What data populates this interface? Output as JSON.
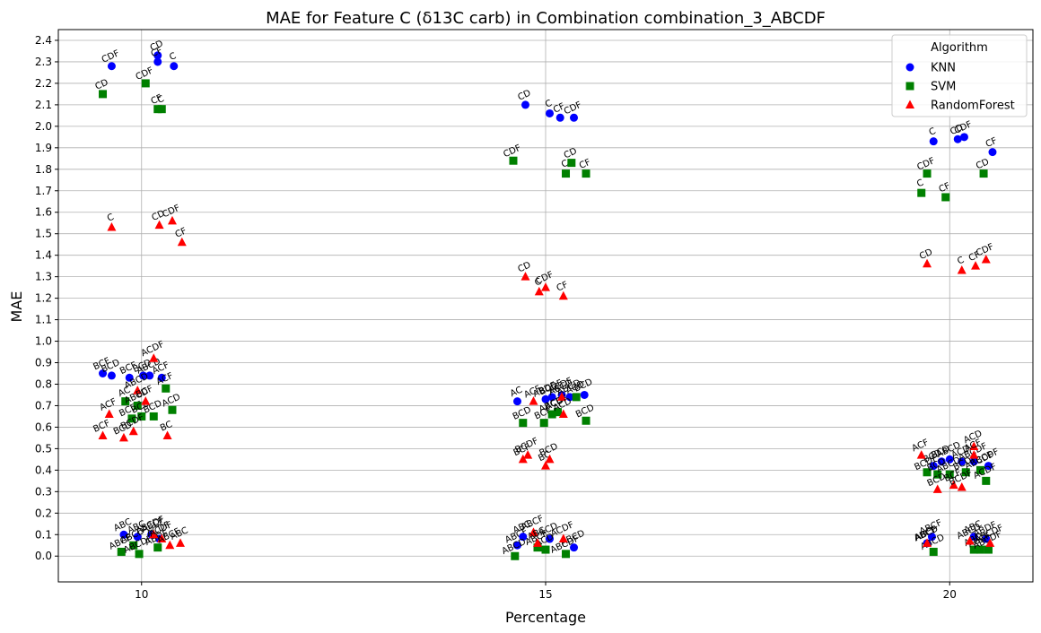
{
  "chart_data": {
    "type": "scatter",
    "title": "MAE for Feature C (δ13C carb) in Combination combination_3_ABCDF",
    "xlabel": "Percentage",
    "ylabel": "MAE",
    "x_ticks": [
      10,
      15,
      20
    ],
    "x_tick_labels": [
      "10",
      "15",
      "20"
    ],
    "xlim": [
      8.97,
      21.03
    ],
    "y_ticks": [
      0.0,
      0.1,
      0.2,
      0.3,
      0.4,
      0.5,
      0.6,
      0.7,
      0.8,
      0.9,
      1.0,
      1.1,
      1.2,
      1.3,
      1.4,
      1.5,
      1.6,
      1.7,
      1.8,
      1.9,
      2.0,
      2.1,
      2.2,
      2.3,
      2.4
    ],
    "y_tick_labels": [
      "0.0",
      "0.1",
      "0.2",
      "0.3",
      "0.4",
      "0.5",
      "0.6",
      "0.7",
      "0.8",
      "0.9",
      "1.0",
      "1.1",
      "1.2",
      "1.3",
      "1.4",
      "1.5",
      "1.6",
      "1.7",
      "1.8",
      "1.9",
      "2.0",
      "2.1",
      "2.2",
      "2.3",
      "2.4"
    ],
    "ylim": [
      -0.12,
      2.45
    ],
    "grid": true,
    "legend": {
      "title": "Algorithm",
      "position": "top-right"
    },
    "series": [
      {
        "name": "KNN",
        "color": "#0000ff",
        "marker": "circle",
        "points": [
          {
            "x": 9.63,
            "y": 2.28,
            "label": "CDF"
          },
          {
            "x": 10.2,
            "y": 2.33,
            "label": "CD"
          },
          {
            "x": 10.2,
            "y": 2.3,
            "label": "CF"
          },
          {
            "x": 10.4,
            "y": 2.28,
            "label": "C"
          },
          {
            "x": 9.52,
            "y": 0.85,
            "label": "BCF"
          },
          {
            "x": 9.63,
            "y": 0.84,
            "label": "BCD"
          },
          {
            "x": 9.85,
            "y": 0.83,
            "label": "BCF"
          },
          {
            "x": 10.02,
            "y": 0.84,
            "label": "BCD"
          },
          {
            "x": 10.1,
            "y": 0.84,
            "label": "ABCD"
          },
          {
            "x": 10.25,
            "y": 0.83,
            "label": "ACF"
          },
          {
            "x": 9.78,
            "y": 0.1,
            "label": "ABC"
          },
          {
            "x": 9.95,
            "y": 0.09,
            "label": "ABC"
          },
          {
            "x": 10.12,
            "y": 0.1,
            "label": "ABCDF"
          },
          {
            "x": 10.22,
            "y": 0.08,
            "label": "ACDF"
          },
          {
            "x": 14.75,
            "y": 2.1,
            "label": "CD"
          },
          {
            "x": 15.05,
            "y": 2.06,
            "label": "C"
          },
          {
            "x": 15.18,
            "y": 2.04,
            "label": "CF"
          },
          {
            "x": 15.35,
            "y": 2.04,
            "label": "CDF"
          },
          {
            "x": 14.65,
            "y": 0.72,
            "label": "AC"
          },
          {
            "x": 15.0,
            "y": 0.73,
            "label": "ABDF"
          },
          {
            "x": 15.08,
            "y": 0.74,
            "label": "BCDF"
          },
          {
            "x": 15.2,
            "y": 0.75,
            "label": "ACDF"
          },
          {
            "x": 15.3,
            "y": 0.74,
            "label": "ABCD"
          },
          {
            "x": 15.48,
            "y": 0.75,
            "label": "BCD"
          },
          {
            "x": 14.65,
            "y": 0.05,
            "label": "ABCF"
          },
          {
            "x": 14.72,
            "y": 0.09,
            "label": "ABC"
          },
          {
            "x": 15.05,
            "y": 0.08,
            "label": "ACD"
          },
          {
            "x": 15.35,
            "y": 0.04,
            "label": "ABCD"
          },
          {
            "x": 19.8,
            "y": 1.93,
            "label": "C"
          },
          {
            "x": 20.1,
            "y": 1.94,
            "label": "CD"
          },
          {
            "x": 20.18,
            "y": 1.95,
            "label": "CDF"
          },
          {
            "x": 20.53,
            "y": 1.88,
            "label": "CF"
          },
          {
            "x": 19.8,
            "y": 0.42,
            "label": "BCD"
          },
          {
            "x": 19.9,
            "y": 0.44,
            "label": "BCD"
          },
          {
            "x": 20.0,
            "y": 0.45,
            "label": "ABCD"
          },
          {
            "x": 20.15,
            "y": 0.44,
            "label": "ACD"
          },
          {
            "x": 20.3,
            "y": 0.44,
            "label": "ABCDF"
          },
          {
            "x": 20.48,
            "y": 0.42,
            "label": "BCDF"
          },
          {
            "x": 19.72,
            "y": 0.06,
            "label": "ABCD"
          },
          {
            "x": 19.78,
            "y": 0.09,
            "label": "ABCF"
          },
          {
            "x": 20.3,
            "y": 0.09,
            "label": "ABC"
          },
          {
            "x": 20.45,
            "y": 0.08,
            "label": "ABDF"
          }
        ]
      },
      {
        "name": "SVM",
        "color": "#008000",
        "marker": "square",
        "points": [
          {
            "x": 9.52,
            "y": 2.15,
            "label": "CD"
          },
          {
            "x": 10.05,
            "y": 2.2,
            "label": "CDF"
          },
          {
            "x": 10.2,
            "y": 2.08,
            "label": "CF"
          },
          {
            "x": 10.25,
            "y": 2.08,
            "label": "C"
          },
          {
            "x": 9.8,
            "y": 0.72,
            "label": "AC"
          },
          {
            "x": 9.88,
            "y": 0.64,
            "label": "BCDF"
          },
          {
            "x": 9.95,
            "y": 0.7,
            "label": "ABCD"
          },
          {
            "x": 10.0,
            "y": 0.65,
            "label": "BCD"
          },
          {
            "x": 10.3,
            "y": 0.78,
            "label": "ACF"
          },
          {
            "x": 10.38,
            "y": 0.68,
            "label": "ACD"
          },
          {
            "x": 10.15,
            "y": 0.65,
            "label": "BCD"
          },
          {
            "x": 9.75,
            "y": 0.02,
            "label": "ABCF"
          },
          {
            "x": 9.9,
            "y": 0.05,
            "label": "ABCD"
          },
          {
            "x": 9.97,
            "y": 0.01,
            "label": "ABCDF"
          },
          {
            "x": 10.2,
            "y": 0.04,
            "label": "ABDF"
          },
          {
            "x": 14.6,
            "y": 1.84,
            "label": "CDF"
          },
          {
            "x": 15.25,
            "y": 1.78,
            "label": "C"
          },
          {
            "x": 15.32,
            "y": 1.83,
            "label": "CD"
          },
          {
            "x": 15.5,
            "y": 1.78,
            "label": "CF"
          },
          {
            "x": 14.72,
            "y": 0.62,
            "label": "BCD"
          },
          {
            "x": 14.98,
            "y": 0.62,
            "label": "BCF"
          },
          {
            "x": 15.08,
            "y": 0.66,
            "label": "ABCD"
          },
          {
            "x": 15.15,
            "y": 0.67,
            "label": "ACDF"
          },
          {
            "x": 15.38,
            "y": 0.74,
            "label": "ACD"
          },
          {
            "x": 15.5,
            "y": 0.63,
            "label": "BCD"
          },
          {
            "x": 14.62,
            "y": 0.0,
            "label": "ABCD"
          },
          {
            "x": 14.9,
            "y": 0.04,
            "label": "ABCF"
          },
          {
            "x": 15.0,
            "y": 0.03,
            "label": "ACD"
          },
          {
            "x": 15.25,
            "y": 0.01,
            "label": "ABCDF"
          },
          {
            "x": 19.65,
            "y": 1.69,
            "label": "C"
          },
          {
            "x": 19.72,
            "y": 1.78,
            "label": "CDF"
          },
          {
            "x": 19.95,
            "y": 1.67,
            "label": "CF"
          },
          {
            "x": 20.42,
            "y": 1.78,
            "label": "CD"
          },
          {
            "x": 19.72,
            "y": 0.39,
            "label": "BCDF"
          },
          {
            "x": 19.85,
            "y": 0.38,
            "label": "BCD"
          },
          {
            "x": 20.0,
            "y": 0.38,
            "label": "ABCD"
          },
          {
            "x": 20.2,
            "y": 0.39,
            "label": "BCDF"
          },
          {
            "x": 20.38,
            "y": 0.4,
            "label": "ABCDF"
          },
          {
            "x": 20.45,
            "y": 0.35,
            "label": "ACDF"
          },
          {
            "x": 19.8,
            "y": 0.02,
            "label": "ABCD"
          },
          {
            "x": 20.3,
            "y": 0.03,
            "label": "ABC"
          },
          {
            "x": 20.38,
            "y": 0.03,
            "label": "ABCF"
          },
          {
            "x": 20.48,
            "y": 0.03,
            "label": "ABCDF"
          }
        ]
      },
      {
        "name": "RandomForest",
        "color": "#ff0000",
        "marker": "triangle",
        "points": [
          {
            "x": 9.63,
            "y": 1.53,
            "label": "C"
          },
          {
            "x": 10.22,
            "y": 1.54,
            "label": "CD"
          },
          {
            "x": 10.38,
            "y": 1.56,
            "label": "CDF"
          },
          {
            "x": 10.5,
            "y": 1.46,
            "label": "CF"
          },
          {
            "x": 10.15,
            "y": 0.92,
            "label": "ACDF"
          },
          {
            "x": 9.6,
            "y": 0.66,
            "label": "ACF"
          },
          {
            "x": 9.52,
            "y": 0.56,
            "label": "BCF"
          },
          {
            "x": 9.78,
            "y": 0.55,
            "label": "BCD"
          },
          {
            "x": 9.9,
            "y": 0.58,
            "label": "BCDF"
          },
          {
            "x": 9.95,
            "y": 0.77,
            "label": "ABCD"
          },
          {
            "x": 10.05,
            "y": 0.72,
            "label": "BCF"
          },
          {
            "x": 10.32,
            "y": 0.56,
            "label": "BC"
          },
          {
            "x": 10.15,
            "y": 0.1,
            "label": "ABCF"
          },
          {
            "x": 10.25,
            "y": 0.08,
            "label": "ACDF"
          },
          {
            "x": 10.35,
            "y": 0.05,
            "label": "ABCF"
          },
          {
            "x": 10.48,
            "y": 0.06,
            "label": "ABC"
          },
          {
            "x": 14.75,
            "y": 1.3,
            "label": "CD"
          },
          {
            "x": 14.92,
            "y": 1.23,
            "label": "C"
          },
          {
            "x": 15.0,
            "y": 1.25,
            "label": "CDF"
          },
          {
            "x": 15.22,
            "y": 1.21,
            "label": "CF"
          },
          {
            "x": 14.72,
            "y": 0.45,
            "label": "BCF"
          },
          {
            "x": 14.78,
            "y": 0.47,
            "label": "BCDF"
          },
          {
            "x": 14.85,
            "y": 0.72,
            "label": "ACF"
          },
          {
            "x": 15.0,
            "y": 0.42,
            "label": "BC"
          },
          {
            "x": 15.05,
            "y": 0.45,
            "label": "BCD"
          },
          {
            "x": 15.2,
            "y": 0.74,
            "label": "ABCD"
          },
          {
            "x": 15.22,
            "y": 0.66,
            "label": "ACD"
          },
          {
            "x": 14.85,
            "y": 0.11,
            "label": "ABCF"
          },
          {
            "x": 14.9,
            "y": 0.06,
            "label": "ABC"
          },
          {
            "x": 15.22,
            "y": 0.08,
            "label": "ACDF"
          },
          {
            "x": 19.72,
            "y": 1.36,
            "label": "CD"
          },
          {
            "x": 20.15,
            "y": 1.33,
            "label": "C"
          },
          {
            "x": 20.32,
            "y": 1.35,
            "label": "CF"
          },
          {
            "x": 20.45,
            "y": 1.38,
            "label": "CDF"
          },
          {
            "x": 19.65,
            "y": 0.47,
            "label": "ACF"
          },
          {
            "x": 19.85,
            "y": 0.31,
            "label": "BCD"
          },
          {
            "x": 20.05,
            "y": 0.33,
            "label": "BCF"
          },
          {
            "x": 20.15,
            "y": 0.32,
            "label": "BCDF"
          },
          {
            "x": 20.3,
            "y": 0.51,
            "label": "ACD"
          },
          {
            "x": 20.3,
            "y": 0.47,
            "label": "ACF"
          },
          {
            "x": 19.72,
            "y": 0.06,
            "label": "ABCF"
          },
          {
            "x": 20.25,
            "y": 0.07,
            "label": "ABCD"
          },
          {
            "x": 20.5,
            "y": 0.06,
            "label": "ABCDF"
          }
        ]
      }
    ]
  }
}
